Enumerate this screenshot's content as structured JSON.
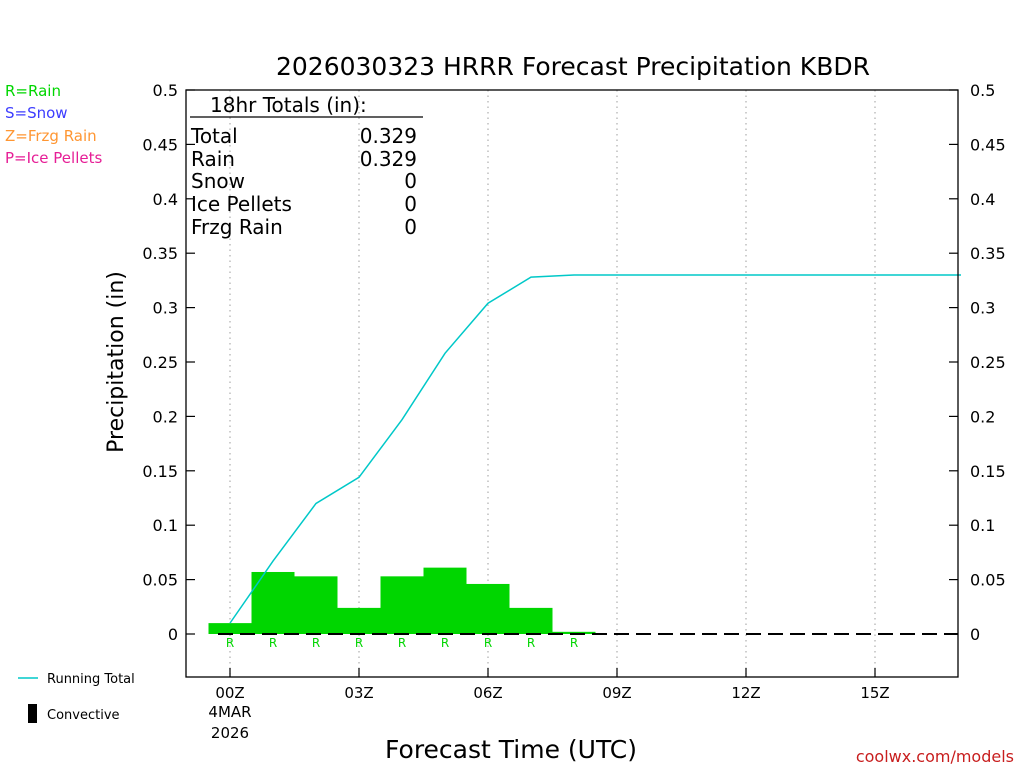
{
  "chart_data": {
    "type": "bar",
    "title": "2026030323 HRRR Forecast Precipitation KBDR",
    "xlabel": "Forecast Time (UTC)",
    "ylabel": "Precipitation (in)",
    "ylim": [
      0,
      0.5
    ],
    "xlim_hours": [
      -1,
      17
    ],
    "y_ticks": [
      "0",
      "0.05",
      "0.1",
      "0.15",
      "0.2",
      "0.25",
      "0.3",
      "0.35",
      "0.4",
      "0.45",
      "0.5"
    ],
    "x_ticks": [
      {
        "hour": 0,
        "label": "00Z"
      },
      {
        "hour": 3,
        "label": "03Z"
      },
      {
        "hour": 6,
        "label": "06Z"
      },
      {
        "hour": 9,
        "label": "09Z"
      },
      {
        "hour": 12,
        "label": "12Z"
      },
      {
        "hour": 15,
        "label": "15Z"
      }
    ],
    "date_label": [
      "4MAR",
      "2026"
    ],
    "hourly_bars": {
      "name": "Hourly Precipitation (Rain)",
      "color": "#00d600",
      "hours": [
        0,
        1,
        2,
        3,
        4,
        5,
        6,
        7,
        8
      ],
      "values": [
        0.01,
        0.057,
        0.053,
        0.024,
        0.053,
        0.061,
        0.046,
        0.024,
        0.002
      ],
      "type_markers": [
        "R",
        "R",
        "R",
        "R",
        "R",
        "R",
        "R",
        "R",
        "R"
      ]
    },
    "running_total": {
      "name": "Running Total",
      "color": "#00c8c8",
      "x": [
        0,
        1,
        2,
        3,
        4,
        5,
        6,
        7,
        8,
        9,
        10,
        11,
        12,
        13,
        14,
        15,
        16,
        17
      ],
      "values": [
        0.01,
        0.067,
        0.12,
        0.144,
        0.197,
        0.258,
        0.304,
        0.328,
        0.33,
        0.33,
        0.33,
        0.33,
        0.33,
        0.33,
        0.33,
        0.33,
        0.33,
        0.33
      ]
    },
    "totals_box": {
      "heading": "18hr Totals (in):",
      "rows": [
        {
          "label": "Total",
          "value": "0.329"
        },
        {
          "label": "Rain",
          "value": "0.329"
        },
        {
          "label": "Snow",
          "value": "0"
        },
        {
          "label": "Ice Pellets",
          "value": "0"
        },
        {
          "label": "Frzg Rain",
          "value": "0"
        }
      ]
    },
    "type_legend": [
      {
        "text": "R=Rain",
        "color": "#00d600"
      },
      {
        "text": "S=Snow",
        "color": "#3c3cff"
      },
      {
        "text": "Z=Frzg Rain",
        "color": "#ff9632"
      },
      {
        "text": "P=Ice Pellets",
        "color": "#e61e96"
      }
    ],
    "series_legend": [
      {
        "text": "Running Total",
        "color": "#00c8c8",
        "kind": "line"
      },
      {
        "text": "Convective",
        "color": "#000000",
        "kind": "bar"
      }
    ],
    "credit": "coolwx.com/models",
    "credit_color": "#c81e1e",
    "grid": "dotted vertical"
  }
}
